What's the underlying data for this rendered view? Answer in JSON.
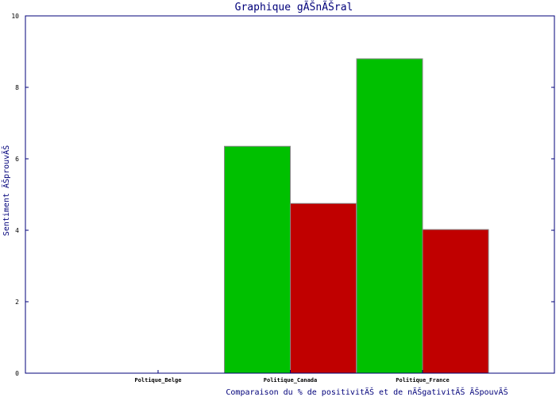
{
  "chart_data": {
    "type": "bar",
    "title": "Graphique gÃŠnÃŠral",
    "xlabel": "Comparaison du % de positivitÃŠ et de nÃŠgativitÃŠ ÃŠpouvÃŠ",
    "ylabel": "Sentiment ÃŠprouvÃŠ",
    "categories": [
      "Poltique_Belge",
      "Politique_Canada",
      "Politique_France"
    ],
    "series": [
      {
        "values": [
          0,
          6.35,
          8.8
        ],
        "color": "#00c000"
      },
      {
        "values": [
          0,
          4.75,
          4.02
        ],
        "color": "#c00000"
      }
    ],
    "ylim": [
      0,
      10
    ],
    "yticks": [
      0,
      2,
      4,
      6,
      8,
      10
    ],
    "grid": false
  }
}
